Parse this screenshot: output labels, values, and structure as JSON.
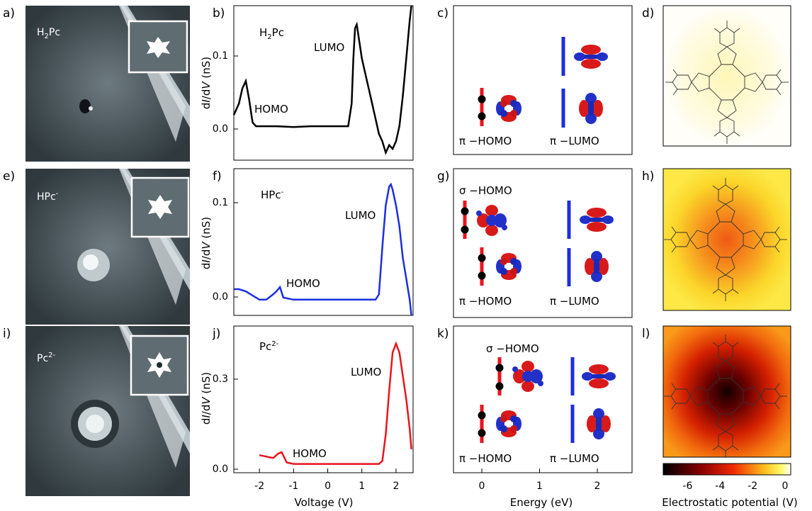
{
  "rows": [
    {
      "stm": {
        "label": "a)",
        "molecule": "H",
        "sub": "2",
        "sup": "",
        "tail": "Pc"
      },
      "spectrum": {
        "label": "b)",
        "molecule": "H",
        "sub": "2",
        "sup": "",
        "tail": "Pc",
        "ylabel_prefix": "d",
        "ylabel_i": "I",
        "ylabel_mid": "/d",
        "ylabel_v": "V",
        "ylabel_suffix": " (nS)",
        "yticks": [
          "0.0",
          "0.1"
        ],
        "homo": "HOMO",
        "lumo": "LUMO"
      },
      "orbitals": {
        "label": "c)",
        "lower_left": "π −HOMO",
        "lower_right": "π −LUMO",
        "upper": ""
      },
      "potential": {
        "label": "d)"
      }
    },
    {
      "stm": {
        "label": "e)",
        "molecule": "HPc",
        "sub": "",
        "sup": "-",
        "tail": ""
      },
      "spectrum": {
        "label": "f)",
        "molecule": "HPc",
        "sub": "",
        "sup": "-",
        "tail": "",
        "ylabel_prefix": "d",
        "ylabel_i": "I",
        "ylabel_mid": "/d",
        "ylabel_v": "V",
        "ylabel_suffix": " (nS)",
        "yticks": [
          "0.0",
          "0.1"
        ],
        "homo": "HOMO",
        "lumo": "LUMO"
      },
      "orbitals": {
        "label": "g)",
        "lower_left": "π −HOMO",
        "lower_right": "π −LUMO",
        "upper": "σ −HOMO"
      },
      "potential": {
        "label": "h)"
      }
    },
    {
      "stm": {
        "label": "i)",
        "molecule": "Pc",
        "sub": "",
        "sup": "2-",
        "tail": ""
      },
      "spectrum": {
        "label": "j)",
        "molecule": "Pc",
        "sub": "",
        "sup": "2-",
        "tail": "",
        "ylabel_prefix": "d",
        "ylabel_i": "I",
        "ylabel_mid": "/d",
        "ylabel_v": "V",
        "ylabel_suffix": " (nS)",
        "yticks": [
          "0.0",
          "0.3"
        ],
        "homo": "HOMO",
        "lumo": "LUMO"
      },
      "orbitals": {
        "label": "k)",
        "lower_left": "π −HOMO",
        "lower_right": "π −LUMO",
        "upper": "σ −HOMO"
      },
      "potential": {
        "label": "l)"
      }
    }
  ],
  "voltage_axis": {
    "title": "Voltage (V)",
    "ticks": [
      "-2",
      "-1",
      "0",
      "1",
      "2"
    ]
  },
  "energy_axis": {
    "title": "Energy (eV)",
    "ticks": [
      "0",
      "1",
      "2"
    ]
  },
  "colorbar": {
    "title": "Electrostatic potential (V)",
    "ticks": [
      "-6",
      "-4",
      "-2",
      "0"
    ]
  },
  "colors": {
    "h2pc_curve": "#000000",
    "hpc_curve": "#1b2ee0",
    "pc_curve": "#e8141c",
    "homo_level": "#e8141c",
    "lumo_level": "#1b2ee0"
  },
  "chart_data": [
    {
      "type": "line",
      "title": "H2Pc",
      "xlabel": "Voltage (V)",
      "ylabel": "dI/dV (nS)",
      "xlim": [
        -2.75,
        2.5
      ],
      "ylim": [
        -0.045,
        0.16
      ],
      "series": [
        {
          "name": "H2Pc",
          "x": [
            -2.75,
            -2.6,
            -2.5,
            -2.4,
            -2.3,
            -2.2,
            -2.1,
            -2.0,
            -1.5,
            -1.0,
            -0.5,
            0,
            0.3,
            0.6,
            0.7,
            0.75,
            0.8,
            0.85,
            0.9,
            1.0,
            1.1,
            1.2,
            1.3,
            1.4,
            1.5,
            1.6,
            1.7,
            1.8,
            1.9,
            2.0,
            2.1,
            2.2,
            2.3,
            2.4,
            2.45
          ],
          "y": [
            0.015,
            0.03,
            0.05,
            0.06,
            0.035,
            0.005,
            0.0,
            0.0,
            0.0,
            -0.001,
            0.0,
            0.0,
            0.0,
            0.0,
            0.03,
            0.09,
            0.13,
            0.135,
            0.12,
            0.09,
            0.07,
            0.05,
            0.03,
            0.01,
            -0.01,
            -0.02,
            -0.035,
            -0.025,
            -0.03,
            -0.02,
            0.0,
            0.04,
            0.09,
            0.14,
            0.16
          ]
        }
      ]
    },
    {
      "type": "line",
      "title": "HPc-",
      "xlabel": "Voltage (V)",
      "ylabel": "dI/dV (nS)",
      "xlim": [
        -2.75,
        2.5
      ],
      "ylim": [
        -0.015,
        0.125
      ],
      "series": [
        {
          "name": "HPc-",
          "x": [
            -2.75,
            -2.6,
            -2.4,
            -2.2,
            -2.0,
            -1.8,
            -1.6,
            -1.5,
            -1.4,
            -1.3,
            -1.0,
            0,
            1.0,
            1.4,
            1.5,
            1.6,
            1.7,
            1.8,
            1.85,
            1.9,
            2.0,
            2.1,
            2.2,
            2.3,
            2.4,
            2.45
          ],
          "y": [
            0.01,
            0.01,
            0.008,
            0.004,
            0.0,
            0.0,
            0.005,
            0.008,
            0.012,
            0.002,
            0.0,
            0.0,
            0.0,
            0.0,
            0.005,
            0.05,
            0.09,
            0.108,
            0.11,
            0.105,
            0.09,
            0.07,
            0.04,
            0.02,
            0.0,
            -0.015
          ]
        }
      ]
    },
    {
      "type": "line",
      "title": "Pc2-",
      "xlabel": "Voltage (V)",
      "ylabel": "dI/dV (nS)",
      "xlim": [
        -2.75,
        2.5
      ],
      "ylim": [
        -0.03,
        0.47
      ],
      "series": [
        {
          "name": "Pc2-",
          "x": [
            -2.0,
            -1.8,
            -1.6,
            -1.45,
            -1.35,
            -1.2,
            -1.0,
            0,
            1.0,
            1.5,
            1.6,
            1.7,
            1.8,
            1.9,
            2.0,
            2.1,
            2.2,
            2.3,
            2.4,
            2.45
          ],
          "y": [
            0.03,
            0.025,
            0.02,
            0.035,
            0.04,
            0.005,
            0.0,
            0.0,
            0.0,
            0.0,
            0.01,
            0.1,
            0.25,
            0.38,
            0.41,
            0.38,
            0.3,
            0.22,
            0.12,
            0.05
          ]
        }
      ]
    }
  ]
}
